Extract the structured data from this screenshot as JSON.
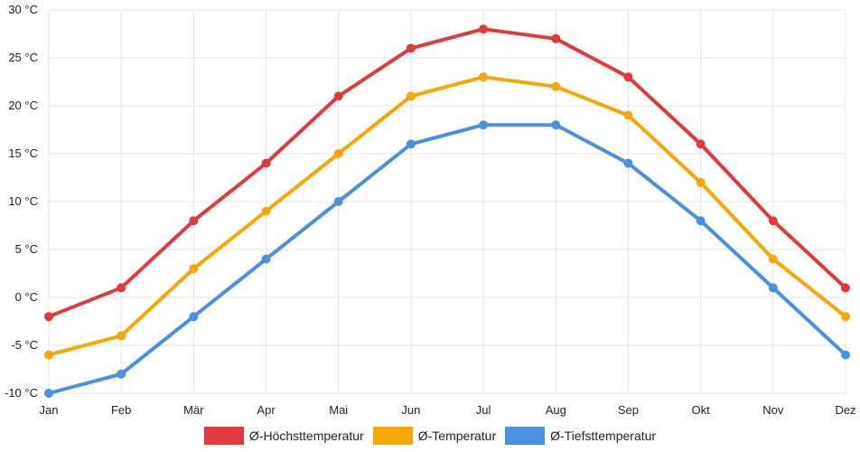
{
  "chart_data": {
    "type": "line",
    "categories": [
      "Jan",
      "Feb",
      "Mär",
      "Apr",
      "Mai",
      "Jun",
      "Jul",
      "Aug",
      "Sep",
      "Okt",
      "Nov",
      "Dez"
    ],
    "y_ticks": [
      "-10 °C",
      "-5 °C",
      "0 °C",
      "5 °C",
      "10 °C",
      "15 °C",
      "20 °C",
      "25 °C",
      "30 °C"
    ],
    "ylim": [
      -10,
      30
    ],
    "y_step": 5,
    "grid": true,
    "legend_position": "bottom",
    "series": [
      {
        "name": "Ø-Höchsttemperatur",
        "color": "#e0393e",
        "values": [
          -2,
          1,
          8,
          14,
          21,
          26,
          28,
          27,
          23,
          16,
          8,
          1
        ]
      },
      {
        "name": "Ø-Temperatur",
        "color": "#f9a602",
        "values": [
          -6,
          -4,
          3,
          9,
          15,
          21,
          23,
          22,
          19,
          12,
          4,
          -2
        ]
      },
      {
        "name": "Ø-Tiefsttemperatur",
        "color": "#4a8fe0",
        "values": [
          -10,
          -8,
          -2,
          4,
          10,
          16,
          18,
          18,
          14,
          8,
          1,
          -6
        ]
      }
    ]
  }
}
